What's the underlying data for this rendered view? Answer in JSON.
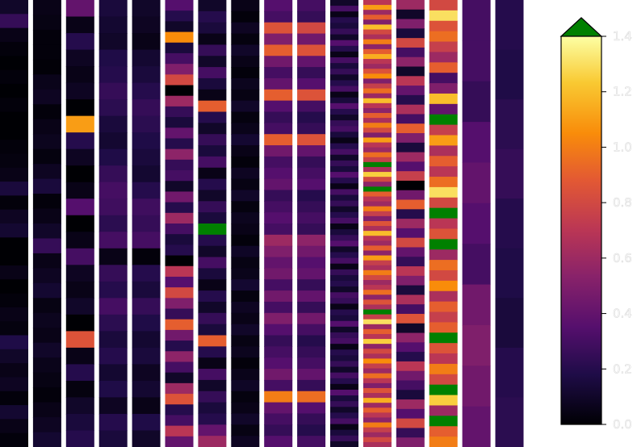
{
  "chart_data": {
    "type": "heatmap",
    "title": "",
    "xlabel": "",
    "ylabel": "",
    "colormap": "inferno",
    "over_color": "#008000",
    "vmin": 0.0,
    "vmax": 1.4,
    "colorbar": {
      "extend": "max",
      "ticks": [
        0.0,
        0.2,
        0.4,
        0.6,
        0.8,
        1.0,
        1.2,
        1.4
      ],
      "tick_labels": [
        "0.0",
        "0.2",
        "0.4",
        "0.6",
        "0.8",
        "1.0",
        "1.2",
        "1.4"
      ]
    },
    "strips": [
      {
        "values": [
          0.1,
          0.25,
          0.05,
          0.02,
          0.0,
          0.02,
          0.0,
          0.02,
          0.0,
          0.0,
          0.02,
          0.03,
          0.05,
          0.15,
          0.02,
          0.08,
          0.12,
          0.0,
          0.0,
          0.05,
          0.0,
          0.02,
          0.05,
          0.03,
          0.18,
          0.1,
          0.05,
          0.08,
          0.02,
          0.12,
          0.05,
          0.02
        ]
      },
      {
        "values": [
          0.05,
          0.04,
          0.02,
          0.02,
          0.01,
          0.06,
          0.08,
          0.02,
          0.05,
          0.07,
          0.03,
          0.08,
          0.15,
          0.02,
          0.05,
          0.1,
          0.25,
          0.05,
          0.08,
          0.12,
          0.04,
          0.07,
          0.05,
          0.1,
          0.06,
          0.04,
          0.02,
          0.05,
          0.08,
          0.12
        ]
      },
      {
        "values": [
          0.4,
          0.05,
          0.2,
          0.08,
          0.05,
          0.08,
          0.0,
          1.1,
          0.2,
          0.08,
          0.0,
          0.05,
          0.35,
          0.0,
          0.05,
          0.3,
          0.08,
          0.05,
          0.1,
          0.0,
          0.85,
          0.05,
          0.2,
          0.03,
          0.1,
          0.15,
          0.2
        ]
      },
      {
        "values": [
          0.15,
          0.12,
          0.1,
          0.18,
          0.2,
          0.25,
          0.22,
          0.15,
          0.12,
          0.18,
          0.25,
          0.3,
          0.28,
          0.22,
          0.3,
          0.05,
          0.25,
          0.2,
          0.3,
          0.22,
          0.15,
          0.2,
          0.12,
          0.18,
          0.08,
          0.2,
          0.15
        ]
      },
      {
        "values": [
          0.1,
          0.08,
          0.05,
          0.12,
          0.15,
          0.2,
          0.25,
          0.22,
          0.18,
          0.15,
          0.12,
          0.2,
          0.28,
          0.25,
          0.3,
          0.02,
          0.2,
          0.15,
          0.25,
          0.18,
          0.12,
          0.15,
          0.08,
          0.12,
          0.05,
          0.18,
          0.1
        ]
      },
      {
        "values": [
          0.35,
          0.2,
          0.1,
          1.05,
          0.15,
          0.3,
          0.5,
          0.8,
          0.0,
          0.6,
          0.25,
          0.15,
          0.4,
          0.2,
          0.55,
          0.25,
          0.3,
          0.1,
          0.45,
          0.2,
          0.6,
          0.3,
          0.15,
          0.2,
          0.0,
          0.7,
          0.35,
          0.8,
          0.5,
          0.25,
          0.9,
          0.45,
          0.2,
          0.55,
          0.3,
          0.1,
          0.6,
          0.85,
          0.2,
          0.3,
          0.7,
          0.4
        ]
      },
      {
        "values": [
          0.1,
          0.2,
          0.15,
          0.05,
          0.25,
          0.1,
          0.3,
          0.15,
          0.05,
          0.9,
          0.2,
          0.1,
          0.25,
          0.15,
          0.3,
          0.05,
          0.2,
          0.1,
          0.25,
          0.15,
          1.5,
          0.2,
          0.1,
          0.3,
          0.15,
          0.05,
          0.2,
          0.1,
          0.25,
          0.15,
          0.9,
          0.2,
          0.05,
          0.3,
          0.1,
          0.25,
          0.15,
          0.2,
          0.4,
          0.6
        ]
      },
      {
        "values": [
          0.05,
          0.02,
          0.08,
          0.03,
          0.1,
          0.05,
          0.02,
          0.07,
          0.04,
          0.1,
          0.03,
          0.06,
          0.12,
          0.05,
          0.02,
          0.08,
          0.04,
          0.1,
          0.03,
          0.07,
          0.05,
          0.02,
          0.09,
          0.04,
          0.06,
          0.12,
          0.03,
          0.08,
          0.05,
          0.1,
          0.04,
          0.07,
          0.02,
          0.06,
          0.09,
          0.03,
          0.05,
          0.1,
          0.04,
          0.08
        ]
      },
      {
        "values": [
          0.35,
          0.3,
          0.85,
          0.5,
          0.9,
          0.45,
          0.3,
          0.4,
          0.9,
          0.35,
          0.25,
          0.3,
          0.9,
          0.45,
          0.3,
          0.35,
          0.4,
          0.25,
          0.3,
          0.35,
          0.3,
          0.6,
          0.5,
          0.4,
          0.45,
          0.3,
          0.45,
          0.3,
          0.5,
          0.35,
          0.25,
          0.3,
          0.35,
          0.45,
          0.3,
          1.0,
          0.4,
          0.3,
          0.25,
          0.35
        ]
      },
      {
        "values": [
          0.3,
          0.25,
          0.8,
          0.45,
          0.85,
          0.4,
          0.25,
          0.35,
          0.85,
          0.3,
          0.2,
          0.25,
          0.85,
          0.4,
          0.25,
          0.3,
          0.35,
          0.2,
          0.25,
          0.3,
          0.25,
          0.55,
          0.45,
          0.35,
          0.4,
          0.25,
          0.4,
          0.25,
          0.45,
          0.3,
          0.2,
          0.25,
          0.3,
          0.4,
          0.25,
          0.95,
          0.35,
          0.25,
          0.2,
          0.3
        ]
      },
      {
        "values": [
          0.1,
          0.3,
          0.05,
          0.2,
          0.15,
          0.25,
          0.1,
          0.35,
          0.2,
          0.05,
          0.3,
          0.15,
          0.25,
          0.1,
          0.2,
          0.3,
          0.05,
          0.15,
          0.35,
          0.2,
          0.1,
          0.25,
          0.3,
          0.15,
          0.05,
          0.2,
          0.3,
          0.1,
          0.25,
          0.15,
          0.35,
          0.2,
          0.05,
          0.3,
          0.15,
          0.25,
          0.1,
          0.2,
          0.3,
          0.05,
          0.15,
          0.25,
          0.35,
          0.1,
          0.2,
          0.3,
          0.05,
          0.25,
          0.15,
          0.2,
          0.1,
          0.3,
          0.25,
          0.05,
          0.2,
          0.15,
          0.35,
          0.1,
          0.25,
          0.3,
          0.05,
          0.2,
          0.15,
          0.25,
          0.1,
          0.3,
          0.2,
          0.05,
          0.35,
          0.15,
          0.25,
          0.1,
          0.2,
          0.3,
          0.05,
          0.15,
          0.25,
          0.1
        ]
      },
      {
        "values": [
          0.7,
          1.1,
          0.6,
          0.9,
          0.5,
          1.2,
          0.8,
          0.65,
          1.0,
          0.55,
          0.9,
          1.15,
          0.7,
          0.6,
          0.85,
          1.05,
          0.5,
          0.75,
          0.95,
          0.6,
          1.2,
          0.7,
          0.55,
          0.9,
          0.65,
          1.0,
          0.8,
          0.5,
          1.1,
          0.7,
          0.6,
          0.95,
          0.75,
          1.5,
          0.65,
          1.25,
          0.8,
          0.55,
          1.5,
          0.9,
          0.7,
          0.6,
          1.0,
          0.75,
          0.5,
          0.85,
          0.65,
          1.2,
          0.7,
          0.6,
          0.9,
          0.55,
          1.1,
          0.75,
          0.65,
          1.0,
          0.8,
          0.6,
          0.7,
          0.95,
          0.55,
          0.85,
          0.65,
          1.5,
          0.75,
          1.3,
          0.6,
          0.9,
          0.7,
          1.25,
          0.55,
          0.8,
          0.65,
          1.05,
          0.75,
          0.6,
          0.95,
          0.7,
          0.5,
          0.85,
          0.65,
          1.15,
          0.6,
          0.9,
          0.7,
          0.55,
          1.0,
          0.75,
          0.6,
          0.8,
          0.65
        ]
      },
      {
        "values": [
          0.6,
          0.1,
          0.5,
          0.15,
          0.8,
          0.3,
          0.55,
          0.1,
          0.7,
          0.4,
          0.2,
          0.65,
          0.3,
          0.9,
          0.5,
          0.15,
          0.6,
          0.35,
          0.75,
          0.0,
          0.45,
          0.9,
          0.2,
          0.6,
          0.35,
          0.8,
          0.4,
          0.25,
          0.7,
          0.5,
          0.15,
          0.65,
          0.3,
          0.85,
          0.1,
          0.55,
          0.35,
          0.2,
          0.7,
          0.45,
          0.3,
          0.15,
          0.6,
          0.35,
          0.8,
          0.25,
          0.5
        ]
      },
      {
        "values": [
          0.8,
          1.3,
          0.85,
          0.95,
          0.75,
          0.6,
          0.9,
          0.3,
          0.5,
          1.2,
          0.4,
          1.5,
          0.75,
          1.1,
          0.65,
          0.9,
          0.7,
          0.95,
          1.3,
          0.8,
          1.5,
          0.7,
          0.85,
          1.5,
          0.6,
          0.95,
          0.8,
          1.05,
          0.65,
          0.9,
          0.75,
          0.9,
          1.5,
          0.85,
          0.7,
          1.0,
          0.8,
          1.5,
          1.25,
          0.6,
          1.5,
          0.9,
          1.0
        ]
      },
      {
        "values": [
          0.3,
          0.3,
          0.25,
          0.35,
          0.4,
          0.35,
          0.3,
          0.45,
          0.5,
          0.45,
          0.4
        ]
      },
      {
        "values": [
          0.2,
          0.18,
          0.22,
          0.25,
          0.2,
          0.18,
          0.15,
          0.2,
          0.22
        ]
      }
    ]
  }
}
